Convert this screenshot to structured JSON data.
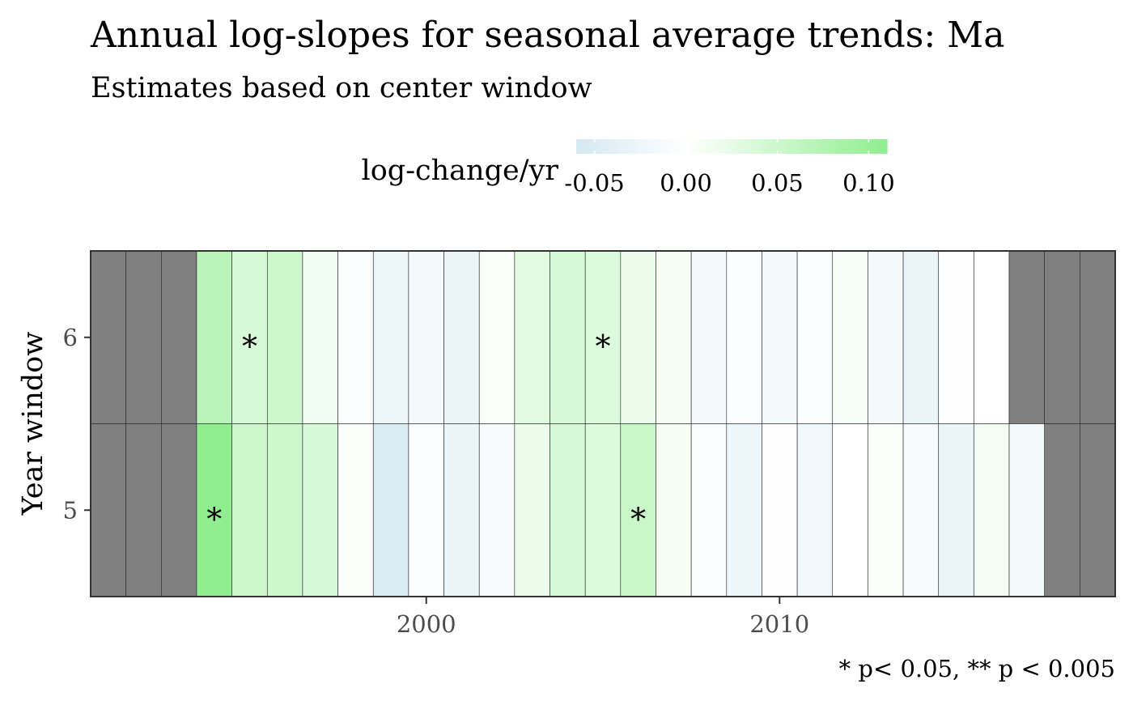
{
  "chart_data": {
    "type": "heatmap",
    "title": "Annual log-slopes for seasonal average trends: Ma",
    "subtitle": "Estimates based on center window",
    "ylabel": "Year window",
    "xlabel": "",
    "caption": "* p< 0.05, ** p < 0.005",
    "legend": {
      "title": "log-change/yr",
      "position": "top",
      "ticks": [
        -0.05,
        0.0,
        0.05,
        0.1
      ],
      "tick_labels": [
        "-0.05",
        "0.00",
        "0.05",
        "0.10"
      ],
      "range": [
        -0.06,
        0.11
      ],
      "low_color": "#d4e9f2",
      "mid_color": "#ffffff",
      "high_color": "#90ee90"
    },
    "x_range": [
      1990.5,
      2019.5
    ],
    "x_ticks": [
      2000,
      2010
    ],
    "x_tick_labels": [
      "2000",
      "2010"
    ],
    "na_color": "#808080",
    "rows": [
      {
        "label": "6",
        "x": [
          1991,
          1992,
          1993,
          1994,
          1995,
          1996,
          1997,
          1998,
          1999,
          2000,
          2001,
          2002,
          2003,
          2004,
          2005,
          2006,
          2007,
          2008,
          2009,
          2010,
          2011,
          2012,
          2013,
          2014,
          2015,
          2016,
          2017,
          2018,
          2019
        ],
        "values": [
          null,
          null,
          null,
          0.07,
          0.04,
          0.05,
          0.015,
          -0.005,
          -0.025,
          -0.015,
          -0.03,
          0.005,
          0.03,
          0.04,
          0.035,
          0.02,
          0.01,
          -0.015,
          -0.005,
          -0.015,
          -0.005,
          0.008,
          -0.015,
          -0.03,
          -0.002,
          0.0,
          null,
          null,
          null
        ],
        "sig": [
          "",
          "",
          "",
          "",
          "*",
          "",
          "",
          "",
          "",
          "",
          "",
          "",
          "",
          "",
          "*",
          "",
          "",
          "",
          "",
          "",
          "",
          "",
          "",
          "",
          "",
          "",
          "",
          "",
          ""
        ]
      },
      {
        "label": "5",
        "x": [
          1991,
          1992,
          1993,
          1994,
          1995,
          1996,
          1997,
          1998,
          1999,
          2000,
          2001,
          2002,
          2003,
          2004,
          2005,
          2006,
          2007,
          2008,
          2009,
          2010,
          2011,
          2012,
          2013,
          2014,
          2015,
          2016,
          2017,
          2018,
          2019
        ],
        "values": [
          null,
          null,
          null,
          0.11,
          0.05,
          0.05,
          0.04,
          0.003,
          -0.05,
          -0.005,
          -0.03,
          -0.01,
          0.02,
          0.04,
          0.035,
          0.055,
          0.01,
          -0.005,
          -0.025,
          -0.002,
          -0.02,
          0.0,
          0.002,
          -0.01,
          -0.03,
          0.012,
          -0.015,
          null,
          null
        ],
        "sig": [
          "",
          "",
          "",
          "*",
          "",
          "",
          "",
          "",
          "",
          "",
          "",
          "",
          "",
          "",
          "",
          "*",
          "",
          "",
          "",
          "",
          "",
          "",
          "",
          "",
          "",
          "",
          "",
          "",
          ""
        ]
      }
    ]
  }
}
